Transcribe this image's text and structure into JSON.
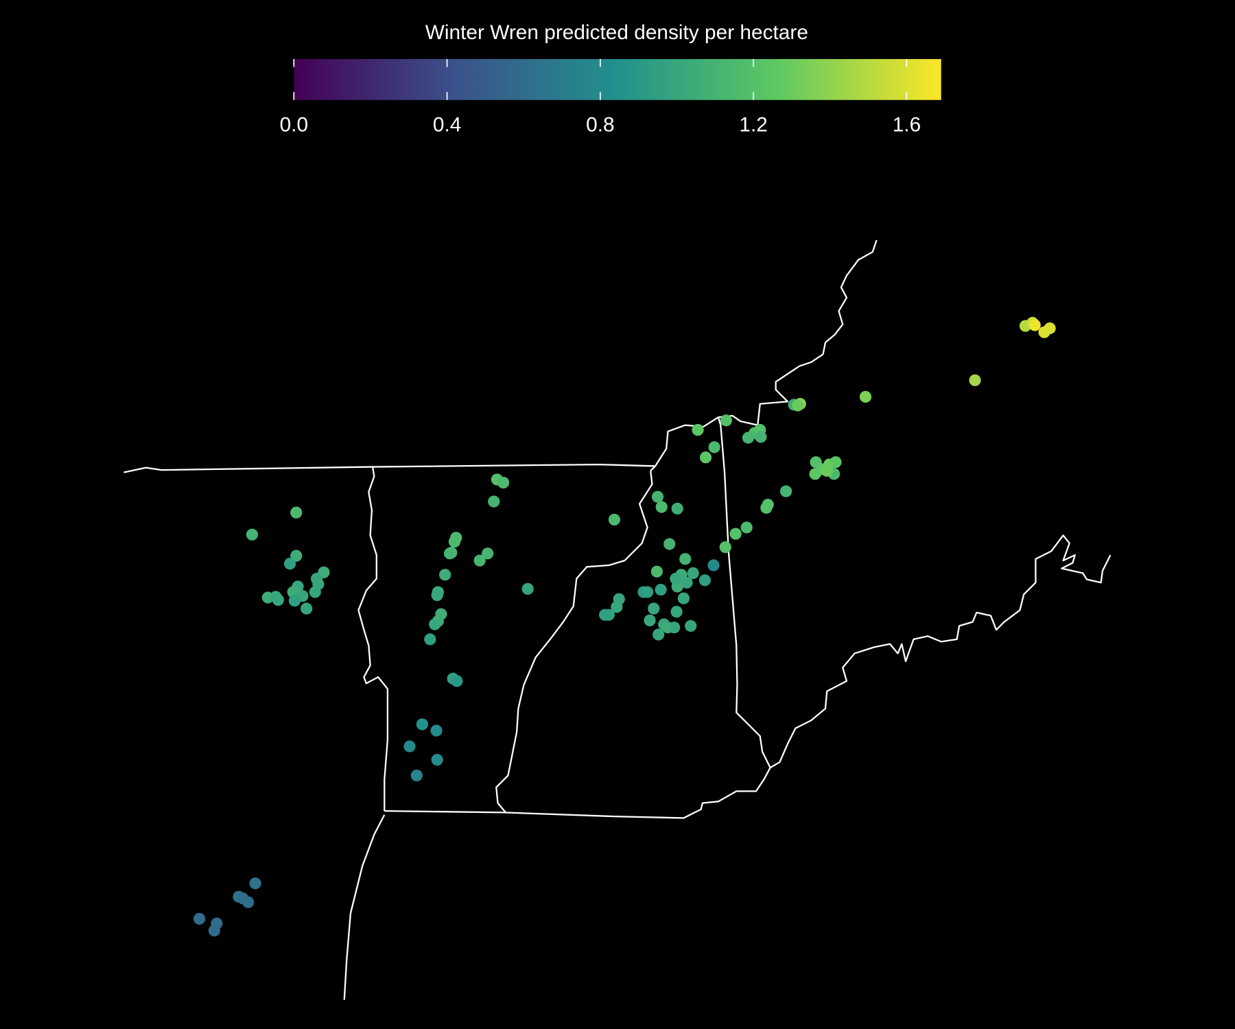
{
  "chart_data": {
    "type": "map",
    "title": "Winter Wren predicted density per hectare",
    "colormap": "viridis",
    "clim": [
      0,
      1.69
    ],
    "cticks": [
      {
        "value": 0,
        "label": "0.0"
      },
      {
        "value": 0.4,
        "label": "0.4"
      },
      {
        "value": 0.8,
        "label": "0.8"
      },
      {
        "value": 1.2,
        "label": "1.2"
      },
      {
        "value": 1.6,
        "label": "1.6"
      }
    ],
    "values": [
      1.5,
      1.55,
      1.65,
      1.6,
      1.6,
      1.45,
      1.35,
      1.05,
      1.4,
      1.3,
      1.2,
      1.25,
      1.15,
      1.25,
      1.15,
      1.2,
      1.1,
      1.1,
      1.2,
      1.25,
      1.3,
      1.25,
      1.25,
      1.15,
      1.3,
      1.1,
      1.2,
      1.2,
      1.15,
      1.2,
      1.2,
      1.1,
      1.15,
      1.05,
      1.15,
      1.1,
      1.1,
      1.15,
      0.8,
      0.95,
      1.0,
      1.05,
      1.0,
      1.05,
      1.0,
      0.95,
      0.9,
      0.95,
      1.0,
      1.0,
      1.0,
      0.95,
      0.95,
      1.0,
      1.0,
      1.0,
      1.0,
      1.05,
      1.0,
      1.0,
      1.0,
      1.2,
      1.15,
      1.1,
      1.15,
      1.15,
      1.1,
      1.1,
      1.1,
      1.1,
      1.05,
      1.0,
      1.05,
      1.0,
      1.05,
      1.05,
      1.0,
      0.95,
      0.95,
      0.9,
      0.85,
      0.8,
      0.8,
      0.8,
      0.75,
      1.15,
      1.1,
      1.05,
      0.95,
      1.05,
      1.0,
      1.0,
      1.0,
      1.05,
      1.0,
      1.05,
      1.0,
      1.0,
      0.95,
      1.0,
      1.0,
      0.65,
      0.65,
      0.6,
      0.6,
      0.6,
      0.6,
      0.6
    ]
  }
}
